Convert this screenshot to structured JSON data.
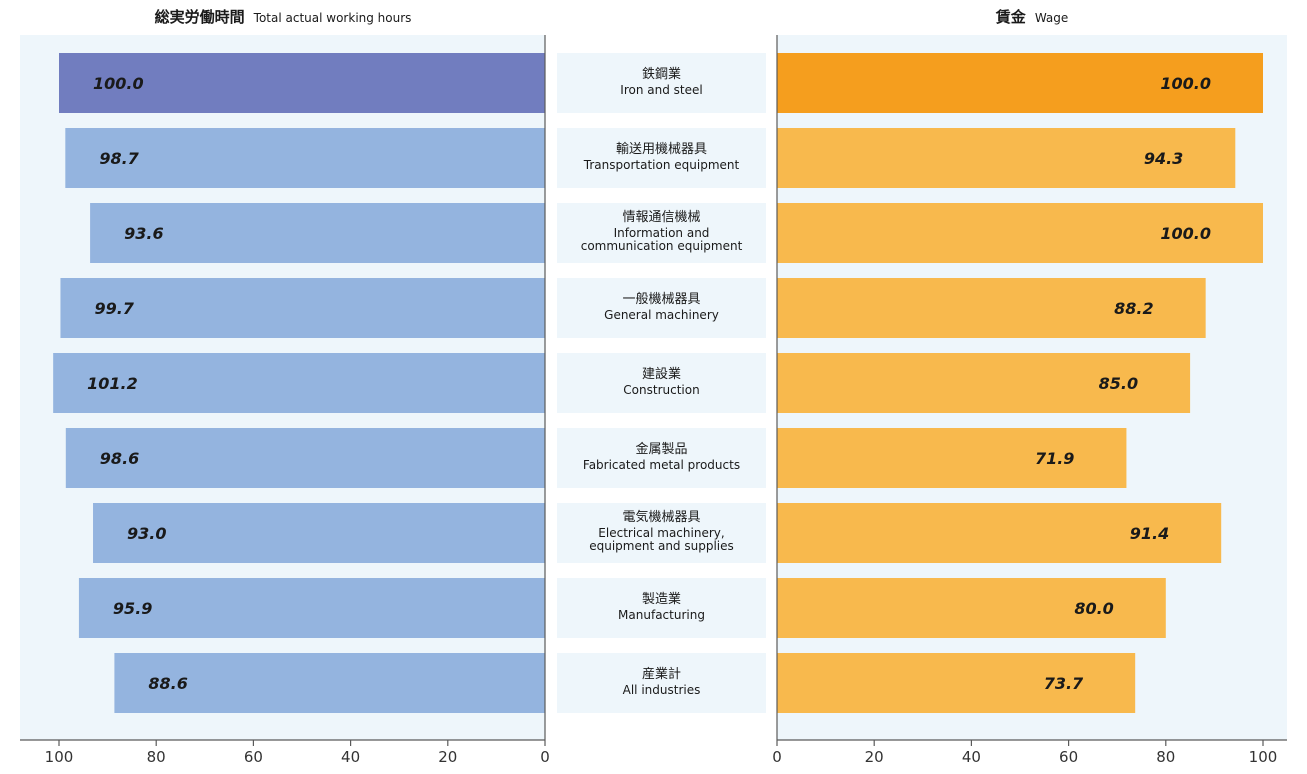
{
  "left_panel": {
    "title_jp": "総実労働時間",
    "title_en": "Total actual working hours"
  },
  "right_panel": {
    "title_jp": "賃金",
    "title_en": "Wage"
  },
  "colors": {
    "panel_bg": "#eef6fb",
    "hours_bar_first": "#717dbf",
    "hours_bar": "#94b4df",
    "wage_bar_first": "#f59e1e",
    "wage_bar": "#f8b94d",
    "label_box": "#eef6fb",
    "axis": "#5a5a5a",
    "value_text": "#1a1a1a"
  },
  "chart_data": [
    {
      "type": "bar",
      "orientation": "horizontal",
      "direction": "right-to-left",
      "title": "総実労働時間 Total actual working hours",
      "categories": [
        "鉄鋼業 Iron and steel",
        "輸送用機械器具 Transportation equipment",
        "情報通信機械 Information and communication equipment",
        "一般機械器具 General machinery",
        "建設業 Construction",
        "金属製品 Fabricated metal products",
        "電気機械器具 Electrical machinery, equipment and supplies",
        "製造業 Manufacturing",
        "産業計 All industries"
      ],
      "values": [
        100.0,
        98.7,
        93.6,
        99.7,
        101.2,
        98.6,
        93.0,
        95.9,
        88.6
      ],
      "value_labels": [
        "100.0",
        "98.7",
        "93.6",
        "99.7",
        "101.2",
        "98.6",
        "93.0",
        "95.9",
        "88.6"
      ],
      "xlim": [
        0,
        100
      ],
      "ticks": [
        100,
        80,
        60,
        40,
        20,
        0
      ]
    },
    {
      "type": "bar",
      "orientation": "horizontal",
      "direction": "left-to-right",
      "title": "賃金 Wage",
      "categories": [
        "鉄鋼業 Iron and steel",
        "輸送用機械器具 Transportation equipment",
        "情報通信機械 Information and communication equipment",
        "一般機械器具 General machinery",
        "建設業 Construction",
        "金属製品 Fabricated metal products",
        "電気機械器具 Electrical machinery, equipment and supplies",
        "製造業 Manufacturing",
        "産業計 All industries"
      ],
      "values": [
        100.0,
        94.3,
        100.0,
        88.2,
        85.0,
        71.9,
        91.4,
        80.0,
        73.7
      ],
      "value_labels": [
        "100.0",
        "94.3",
        "100.0",
        "88.2",
        "85.0",
        "71.9",
        "91.4",
        "80.0",
        "73.7"
      ],
      "xlim": [
        0,
        100
      ],
      "ticks": [
        0,
        20,
        40,
        60,
        80,
        100
      ]
    }
  ],
  "industries": [
    {
      "jp": "鉄鋼業",
      "en": [
        "Iron and steel"
      ]
    },
    {
      "jp": "輸送用機械器具",
      "en": [
        "Transportation equipment"
      ]
    },
    {
      "jp": "情報通信機械",
      "en": [
        "Information and",
        "communication equipment"
      ]
    },
    {
      "jp": "一般機械器具",
      "en": [
        "General machinery"
      ]
    },
    {
      "jp": "建設業",
      "en": [
        "Construction"
      ]
    },
    {
      "jp": "金属製品",
      "en": [
        "Fabricated metal products"
      ]
    },
    {
      "jp": "電気機械器具",
      "en": [
        "Electrical machinery,",
        "equipment and supplies"
      ]
    },
    {
      "jp": "製造業",
      "en": [
        "Manufacturing"
      ]
    },
    {
      "jp": "産業計",
      "en": [
        "All industries"
      ]
    }
  ]
}
